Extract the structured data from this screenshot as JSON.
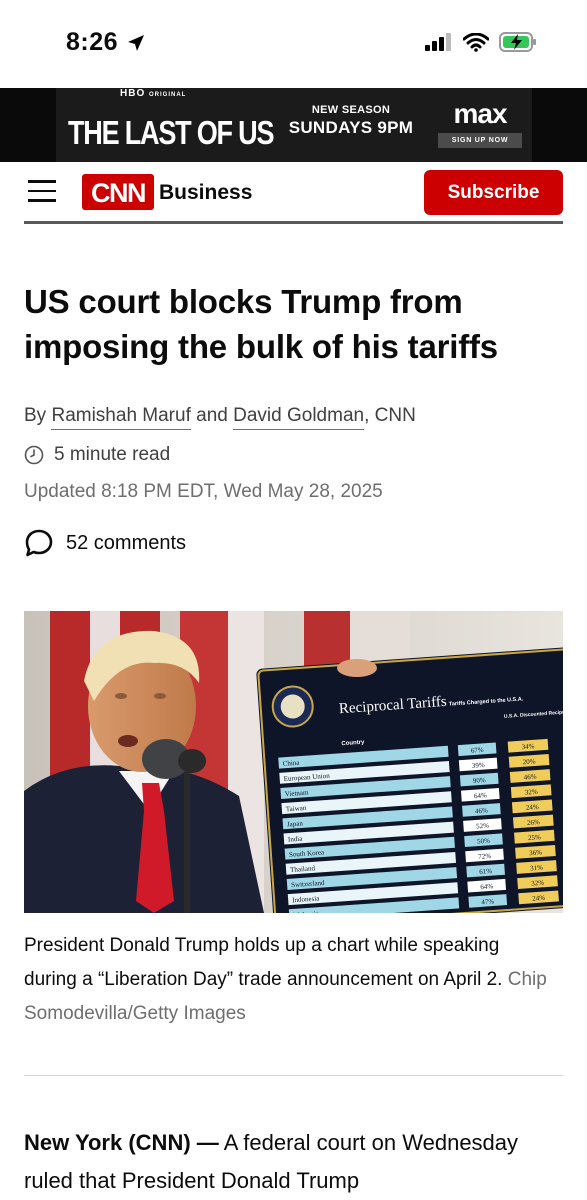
{
  "status_bar": {
    "time": "8:26"
  },
  "ad": {
    "hbo_label": "HBO",
    "hbo_original": "ORIGINAL",
    "show_title": "THE LAST OF US",
    "season_line1": "NEW SEASON",
    "season_line2": "SUNDAYS 9PM",
    "brand": "max",
    "cta": "SIGN UP NOW"
  },
  "header": {
    "logo_text": "CNN",
    "section": "Business",
    "subscribe_label": "Subscribe"
  },
  "article": {
    "headline": "US court blocks Trump from imposing the bulk of his tariffs",
    "byline_prefix": "By",
    "author1": "Ramishah Maruf",
    "byline_and": "and",
    "author2": "David Goldman",
    "byline_suffix": ", CNN",
    "read_time": "5 minute read",
    "updated": "Updated 8:18 PM EDT, Wed May 28, 2025",
    "comments": "52 comments",
    "caption": "President Donald Trump holds up a chart while speaking during a “Liberation Day” trade announcement on April 2.",
    "caption_credit": "Chip Somodevilla/Getty Images",
    "body_lead": "New York (CNN) —",
    "body_text": "A federal court on Wednesday ruled that President Donald Trump"
  },
  "image": {
    "board_title": "Reciprocal Tariffs",
    "col_country": "Country",
    "col_charged": "Tariffs Charged to the U.S.A.",
    "col_discounted": "U.S.A. Discounted Reciprocal Tariffs",
    "rows": [
      {
        "country": "China",
        "charged": "67%",
        "discounted": "34%"
      },
      {
        "country": "European Union",
        "charged": "39%",
        "discounted": "20%"
      },
      {
        "country": "Vietnam",
        "charged": "90%",
        "discounted": "46%"
      },
      {
        "country": "Taiwan",
        "charged": "64%",
        "discounted": "32%"
      },
      {
        "country": "Japan",
        "charged": "46%",
        "discounted": "24%"
      },
      {
        "country": "India",
        "charged": "52%",
        "discounted": "26%"
      },
      {
        "country": "South Korea",
        "charged": "50%",
        "discounted": "25%"
      },
      {
        "country": "Thailand",
        "charged": "72%",
        "discounted": "36%"
      },
      {
        "country": "Switzerland",
        "charged": "61%",
        "discounted": "31%"
      },
      {
        "country": "Indonesia",
        "charged": "64%",
        "discounted": "32%"
      },
      {
        "country": "Malaysia",
        "charged": "47%",
        "discounted": "24%"
      }
    ]
  },
  "colors": {
    "cnn_red": "#cc0000",
    "text": "#0c0c0c",
    "muted": "#6e6e6e"
  }
}
